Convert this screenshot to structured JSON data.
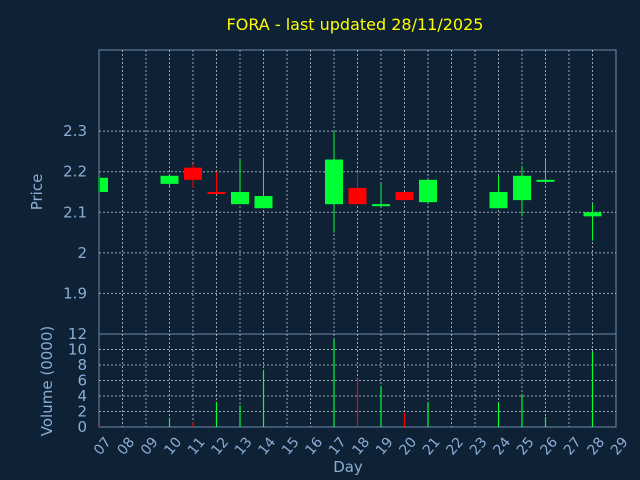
{
  "title": "FORA - last updated 28/11/2025",
  "colors": {
    "background": "#0f2135",
    "up": "#00ff33",
    "down": "#ff0000",
    "title": "#ffff00",
    "axis_text": "#8aaed6",
    "grid": "#c8d2dc"
  },
  "chart_data": [
    {
      "type": "candlestick",
      "ylabel": "Price",
      "ylim": [
        1.8,
        2.5
      ],
      "yticks": [
        "1.9",
        "2",
        "2.1",
        "2.2",
        "2.3"
      ],
      "ytick_values": [
        1.9,
        2.0,
        2.1,
        2.2,
        2.3
      ],
      "grid": true,
      "candles": [
        {
          "day": 7,
          "open": 2.15,
          "high": 2.19,
          "low": 2.15,
          "close": 2.185
        },
        {
          "day": 10,
          "open": 2.17,
          "high": 2.19,
          "low": 2.16,
          "close": 2.19
        },
        {
          "day": 11,
          "open": 2.21,
          "high": 2.22,
          "low": 2.16,
          "close": 2.18
        },
        {
          "day": 12,
          "open": 2.15,
          "high": 2.2,
          "low": 2.145,
          "close": 2.145
        },
        {
          "day": 13,
          "open": 2.12,
          "high": 2.23,
          "low": 2.12,
          "close": 2.15
        },
        {
          "day": 14,
          "open": 2.11,
          "high": 2.235,
          "low": 2.11,
          "close": 2.14
        },
        {
          "day": 17,
          "open": 2.12,
          "high": 2.3,
          "low": 2.05,
          "close": 2.23
        },
        {
          "day": 18,
          "open": 2.16,
          "high": 2.2,
          "low": 2.12,
          "close": 2.12
        },
        {
          "day": 19,
          "open": 2.12,
          "high": 2.17,
          "low": 2.115,
          "close": 2.12
        },
        {
          "day": 20,
          "open": 2.15,
          "high": 2.15,
          "low": 2.13,
          "close": 2.13
        },
        {
          "day": 21,
          "open": 2.125,
          "high": 2.18,
          "low": 2.12,
          "close": 2.18
        },
        {
          "day": 24,
          "open": 2.11,
          "high": 2.19,
          "low": 2.11,
          "close": 2.15
        },
        {
          "day": 25,
          "open": 2.13,
          "high": 2.215,
          "low": 2.09,
          "close": 2.19
        },
        {
          "day": 26,
          "open": 2.18,
          "high": 2.23,
          "low": 2.17,
          "close": 2.18
        },
        {
          "day": 28,
          "open": 2.09,
          "high": 2.12,
          "low": 2.03,
          "close": 2.1
        }
      ]
    },
    {
      "type": "bar",
      "ylabel": "Volume (0000)",
      "xlabel": "Day",
      "ylim": [
        0,
        12
      ],
      "yticks": [
        "0",
        "2",
        "4",
        "6",
        "8",
        "10",
        "12"
      ],
      "ytick_values": [
        0,
        2,
        4,
        6,
        8,
        10,
        12
      ],
      "categories": [
        "07",
        "08",
        "09",
        "10",
        "11",
        "12",
        "13",
        "14",
        "15",
        "16",
        "17",
        "18",
        "19",
        "20",
        "21",
        "22",
        "23",
        "24",
        "25",
        "26",
        "27",
        "28",
        "29"
      ],
      "grid": true,
      "volumes": [
        {
          "day": 7,
          "value": 0.2,
          "dir": "down"
        },
        {
          "day": 10,
          "value": 1.2,
          "dir": "up"
        },
        {
          "day": 11,
          "value": 0.6,
          "dir": "down"
        },
        {
          "day": 12,
          "value": 3.2,
          "dir": "up"
        },
        {
          "day": 13,
          "value": 2.8,
          "dir": "up"
        },
        {
          "day": 14,
          "value": 7.3,
          "dir": "up"
        },
        {
          "day": 17,
          "value": 11.3,
          "dir": "up"
        },
        {
          "day": 18,
          "value": 6.2,
          "dir": "down"
        },
        {
          "day": 19,
          "value": 5.2,
          "dir": "up"
        },
        {
          "day": 20,
          "value": 1.8,
          "dir": "down"
        },
        {
          "day": 21,
          "value": 3.2,
          "dir": "up"
        },
        {
          "day": 24,
          "value": 3.1,
          "dir": "up"
        },
        {
          "day": 25,
          "value": 4.2,
          "dir": "up"
        },
        {
          "day": 26,
          "value": 1.3,
          "dir": "up"
        },
        {
          "day": 28,
          "value": 9.7,
          "dir": "up"
        }
      ]
    }
  ]
}
